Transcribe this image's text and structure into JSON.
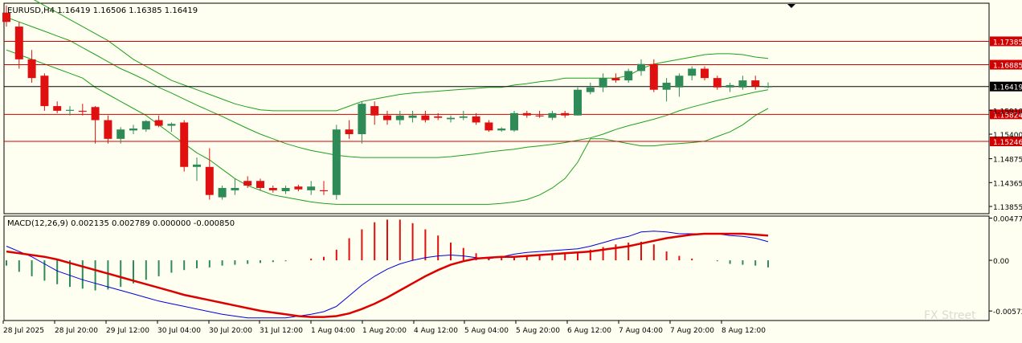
{
  "header": {
    "symbol_line": "EURUSD,H4  1.16419 1.16506 1.16385 1.16419",
    "macd_line": "MACD(12,26,9) 0.002135 0.002789 0.000000 -0.000850"
  },
  "colors": {
    "background": "#fefff0",
    "bull": "#2e8b57",
    "bear": "#e01010",
    "level": "#d00000",
    "price_line": "#000000",
    "bands": "#1ea01e",
    "macd_line": "#0000dd",
    "signal_line": "#dd0000"
  },
  "watermark": "FX Street",
  "chart_data": [
    {
      "type": "candlestick",
      "title": "EURUSD,H4",
      "ohlc_readout": [
        1.16419,
        1.16506,
        1.16385,
        1.16419
      ],
      "ylim": [
        1.137,
        1.182
      ],
      "yticks": [
        "1.13855",
        "1.14365",
        "1.14875",
        "1.15400",
        "1.15910"
      ],
      "levels": [
        {
          "value": 1.17385,
          "label": "1.17385",
          "color": "#d00000"
        },
        {
          "value": 1.16885,
          "label": "1.16885",
          "color": "#d00000"
        },
        {
          "value": 1.16419,
          "label": "1.16419",
          "color": "#000000"
        },
        {
          "value": 1.15824,
          "label": "1.15824",
          "color": "#d00000"
        },
        {
          "value": 1.15246,
          "label": "1.15246",
          "color": "#d00000"
        }
      ],
      "xlabels": [
        "28 Jul 2025",
        "28 Jul 20:00",
        "29 Jul 12:00",
        "30 Jul 04:00",
        "30 Jul 20:00",
        "31 Jul 12:00",
        "1 Aug 04:00",
        "1 Aug 20:00",
        "4 Aug 12:00",
        "5 Aug 04:00",
        "5 Aug 20:00",
        "6 Aug 12:00",
        "7 Aug 04:00",
        "7 Aug 20:00",
        "8 Aug 12:00"
      ],
      "candles": [
        [
          1.18,
          1.1815,
          1.177,
          1.178
        ],
        [
          1.177,
          1.178,
          1.168,
          1.17
        ],
        [
          1.17,
          1.172,
          1.165,
          1.166
        ],
        [
          1.1665,
          1.167,
          1.159,
          1.16
        ],
        [
          1.16,
          1.161,
          1.1585,
          1.159
        ],
        [
          1.159,
          1.16,
          1.158,
          1.1592
        ],
        [
          1.159,
          1.1605,
          1.158,
          1.1588
        ],
        [
          1.1598,
          1.16,
          1.152,
          1.157
        ],
        [
          1.157,
          1.158,
          1.152,
          1.153
        ],
        [
          1.153,
          1.1555,
          1.152,
          1.155
        ],
        [
          1.1548,
          1.156,
          1.154,
          1.1552
        ],
        [
          1.155,
          1.157,
          1.1545,
          1.1568
        ],
        [
          1.157,
          1.158,
          1.1555,
          1.1558
        ],
        [
          1.1558,
          1.1565,
          1.1545,
          1.1562
        ],
        [
          1.1565,
          1.157,
          1.146,
          1.147
        ],
        [
          1.147,
          1.149,
          1.144,
          1.1475
        ],
        [
          1.147,
          1.151,
          1.14,
          1.141
        ],
        [
          1.1405,
          1.143,
          1.14,
          1.1425
        ],
        [
          1.142,
          1.1445,
          1.141,
          1.1425
        ],
        [
          1.144,
          1.145,
          1.1425,
          1.143
        ],
        [
          1.144,
          1.1445,
          1.142,
          1.1425
        ],
        [
          1.1425,
          1.143,
          1.1415,
          1.142
        ],
        [
          1.1418,
          1.143,
          1.1412,
          1.1425
        ],
        [
          1.1428,
          1.1432,
          1.1418,
          1.1422
        ],
        [
          1.142,
          1.144,
          1.141,
          1.1428
        ],
        [
          1.142,
          1.144,
          1.141,
          1.1418
        ],
        [
          1.141,
          1.156,
          1.14,
          1.155
        ],
        [
          1.155,
          1.157,
          1.153,
          1.154
        ],
        [
          1.154,
          1.161,
          1.152,
          1.1605
        ],
        [
          1.16,
          1.161,
          1.156,
          1.158
        ],
        [
          1.158,
          1.159,
          1.156,
          1.157
        ],
        [
          1.157,
          1.159,
          1.156,
          1.158
        ],
        [
          1.1575,
          1.159,
          1.1565,
          1.158
        ],
        [
          1.158,
          1.159,
          1.1565,
          1.157
        ],
        [
          1.1578,
          1.1585,
          1.157,
          1.1575
        ],
        [
          1.1572,
          1.158,
          1.1565,
          1.1575
        ],
        [
          1.1575,
          1.159,
          1.157,
          1.1578
        ],
        [
          1.1578,
          1.1585,
          1.156,
          1.1565
        ],
        [
          1.1565,
          1.157,
          1.1545,
          1.1548
        ],
        [
          1.1548,
          1.1555,
          1.1545,
          1.1552
        ],
        [
          1.1548,
          1.159,
          1.1545,
          1.1585
        ],
        [
          1.1585,
          1.159,
          1.1575,
          1.158
        ],
        [
          1.158,
          1.159,
          1.1575,
          1.1578
        ],
        [
          1.1575,
          1.159,
          1.157,
          1.1585
        ],
        [
          1.1585,
          1.159,
          1.1575,
          1.158
        ],
        [
          1.158,
          1.164,
          1.158,
          1.1635
        ],
        [
          1.163,
          1.165,
          1.1625,
          1.164
        ],
        [
          1.164,
          1.167,
          1.163,
          1.166
        ],
        [
          1.166,
          1.167,
          1.165,
          1.1655
        ],
        [
          1.1655,
          1.168,
          1.165,
          1.1675
        ],
        [
          1.1675,
          1.17,
          1.1665,
          1.169
        ],
        [
          1.169,
          1.17,
          1.163,
          1.1635
        ],
        [
          1.1635,
          1.166,
          1.161,
          1.165
        ],
        [
          1.164,
          1.167,
          1.162,
          1.1665
        ],
        [
          1.1665,
          1.1685,
          1.1655,
          1.168
        ],
        [
          1.168,
          1.1685,
          1.1655,
          1.166
        ],
        [
          1.166,
          1.1665,
          1.1635,
          1.164
        ],
        [
          1.164,
          1.165,
          1.163,
          1.1645
        ],
        [
          1.164,
          1.1665,
          1.1635,
          1.1655
        ],
        [
          1.1655,
          1.1665,
          1.1635,
          1.1642
        ],
        [
          1.16419,
          1.16506,
          1.16385,
          1.16419
        ]
      ],
      "bollinger_upper": [
        1.185,
        1.1845,
        1.183,
        1.1815,
        1.18,
        1.1785,
        1.177,
        1.1755,
        1.174,
        1.172,
        1.17,
        1.1685,
        1.167,
        1.1655,
        1.1645,
        1.1635,
        1.1625,
        1.1615,
        1.1605,
        1.1598,
        1.1592,
        1.159,
        1.159,
        1.159,
        1.159,
        1.159,
        1.159,
        1.16,
        1.161,
        1.1615,
        1.162,
        1.1625,
        1.1628,
        1.163,
        1.1632,
        1.1634,
        1.1636,
        1.1638,
        1.164,
        1.164,
        1.1645,
        1.1648,
        1.1652,
        1.1655,
        1.166,
        1.166,
        1.166,
        1.166,
        1.166,
        1.1665,
        1.168,
        1.169,
        1.1695,
        1.17,
        1.1705,
        1.171,
        1.1712,
        1.1712,
        1.171,
        1.1705,
        1.1702
      ],
      "bollinger_middle": [
        1.179,
        1.178,
        1.177,
        1.176,
        1.175,
        1.174,
        1.1725,
        1.171,
        1.1695,
        1.168,
        1.1668,
        1.1655,
        1.164,
        1.1628,
        1.1615,
        1.1602,
        1.159,
        1.1578,
        1.1565,
        1.1552,
        1.154,
        1.153,
        1.152,
        1.1512,
        1.1505,
        1.15,
        1.1495,
        1.1492,
        1.149,
        1.149,
        1.149,
        1.149,
        1.149,
        1.149,
        1.149,
        1.1492,
        1.1495,
        1.1498,
        1.1502,
        1.1505,
        1.1508,
        1.1512,
        1.1515,
        1.1518,
        1.1522,
        1.1527,
        1.1532,
        1.154,
        1.155,
        1.1558,
        1.1565,
        1.1572,
        1.158,
        1.159,
        1.1598,
        1.1605,
        1.1612,
        1.1618,
        1.1624,
        1.163,
        1.1635
      ],
      "bollinger_lower": [
        1.172,
        1.171,
        1.17,
        1.169,
        1.168,
        1.167,
        1.166,
        1.164,
        1.1625,
        1.161,
        1.1595,
        1.158,
        1.156,
        1.154,
        1.152,
        1.15,
        1.1485,
        1.1465,
        1.1445,
        1.143,
        1.142,
        1.141,
        1.1405,
        1.14,
        1.1395,
        1.1392,
        1.139,
        1.139,
        1.139,
        1.139,
        1.139,
        1.139,
        1.139,
        1.139,
        1.139,
        1.139,
        1.139,
        1.139,
        1.139,
        1.1392,
        1.1395,
        1.14,
        1.141,
        1.1425,
        1.1445,
        1.148,
        1.153,
        1.153,
        1.1525,
        1.152,
        1.1515,
        1.1515,
        1.1518,
        1.152,
        1.1522,
        1.1525,
        1.1535,
        1.1545,
        1.156,
        1.158,
        1.1595
      ]
    },
    {
      "type": "macd",
      "title": "MACD(12,26,9)",
      "params": "12,26,9",
      "values_readout": [
        0.002135,
        0.002789,
        0.0,
        -0.00085
      ],
      "ylim": [
        -0.0068,
        0.005
      ],
      "yticks": [
        "0.004774",
        "0.00",
        "-0.005725"
      ],
      "histogram": [
        -0.0006,
        -0.0013,
        -0.0018,
        -0.0023,
        -0.0027,
        -0.003,
        -0.0032,
        -0.0034,
        -0.0033,
        -0.003,
        -0.0026,
        -0.0022,
        -0.0018,
        -0.0014,
        -0.0011,
        -0.0009,
        -0.0008,
        -0.0006,
        -0.0005,
        -0.0004,
        -0.0003,
        -0.0002,
        -0.0001,
        0.0,
        0.0002,
        0.0004,
        0.0012,
        0.0025,
        0.0035,
        0.0043,
        0.0046,
        0.0046,
        0.0042,
        0.0035,
        0.0028,
        0.002,
        0.0014,
        0.0008,
        0.0002,
        0.0003,
        0.0004,
        0.0005,
        0.0006,
        0.0007,
        0.0008,
        0.001,
        0.0012,
        0.0015,
        0.0018,
        0.002,
        0.0021,
        0.0018,
        0.001,
        0.0005,
        0.0002,
        0.0,
        -0.0001,
        -0.0004,
        -0.0005,
        -0.0006,
        -0.0008
      ],
      "macd_line": [
        0.0016,
        0.001,
        0.0004,
        -0.0004,
        -0.0012,
        -0.0017,
        -0.0022,
        -0.0026,
        -0.003,
        -0.0034,
        -0.0038,
        -0.0042,
        -0.0046,
        -0.0049,
        -0.0052,
        -0.0055,
        -0.0058,
        -0.0061,
        -0.0063,
        -0.0065,
        -0.0065,
        -0.0065,
        -0.0065,
        -0.0063,
        -0.0061,
        -0.0058,
        -0.0052,
        -0.004,
        -0.0028,
        -0.0018,
        -0.001,
        -0.0004,
        0.0,
        0.0003,
        0.0005,
        0.0006,
        0.0005,
        0.0003,
        0.0002,
        0.0004,
        0.0007,
        0.0009,
        0.001,
        0.0011,
        0.0012,
        0.0013,
        0.0016,
        0.002,
        0.0024,
        0.0027,
        0.0032,
        0.0033,
        0.0032,
        0.003,
        0.003,
        0.003,
        0.003,
        0.0028,
        0.0027,
        0.0025,
        0.0021
      ],
      "signal_line": [
        0.001,
        0.0008,
        0.0006,
        0.0004,
        0.0001,
        -0.0003,
        -0.0007,
        -0.0011,
        -0.0015,
        -0.0019,
        -0.0023,
        -0.0027,
        -0.0031,
        -0.0035,
        -0.0039,
        -0.0042,
        -0.0045,
        -0.0048,
        -0.0051,
        -0.0054,
        -0.0057,
        -0.0059,
        -0.0061,
        -0.0063,
        -0.0064,
        -0.0064,
        -0.0063,
        -0.006,
        -0.0055,
        -0.0049,
        -0.0042,
        -0.0034,
        -0.0026,
        -0.0018,
        -0.0011,
        -0.0005,
        -0.0001,
        0.0002,
        0.0003,
        0.0004,
        0.0004,
        0.0005,
        0.0006,
        0.0007,
        0.0008,
        0.0009,
        0.001,
        0.0012,
        0.0014,
        0.0016,
        0.0019,
        0.0022,
        0.0025,
        0.0027,
        0.0029,
        0.003,
        0.003,
        0.003,
        0.003,
        0.0029,
        0.0028
      ]
    }
  ]
}
